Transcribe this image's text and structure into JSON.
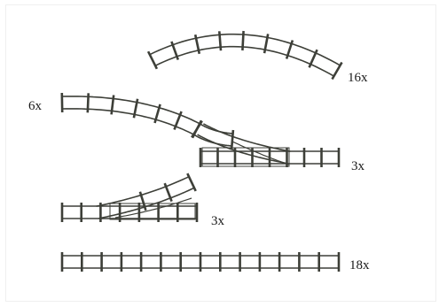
{
  "track_pieces": [
    {
      "name": "curved-track",
      "quantity": "16x"
    },
    {
      "name": "s-curve-track",
      "quantity": "6x"
    },
    {
      "name": "right-switch-track",
      "quantity": "3x"
    },
    {
      "name": "left-switch-track",
      "quantity": "3x"
    },
    {
      "name": "straight-track",
      "quantity": "18x"
    }
  ],
  "colors": {
    "rail": "#3d3f38",
    "tie": "#3d3f38",
    "label": "#1a1a1a",
    "background": "#ffffff"
  }
}
